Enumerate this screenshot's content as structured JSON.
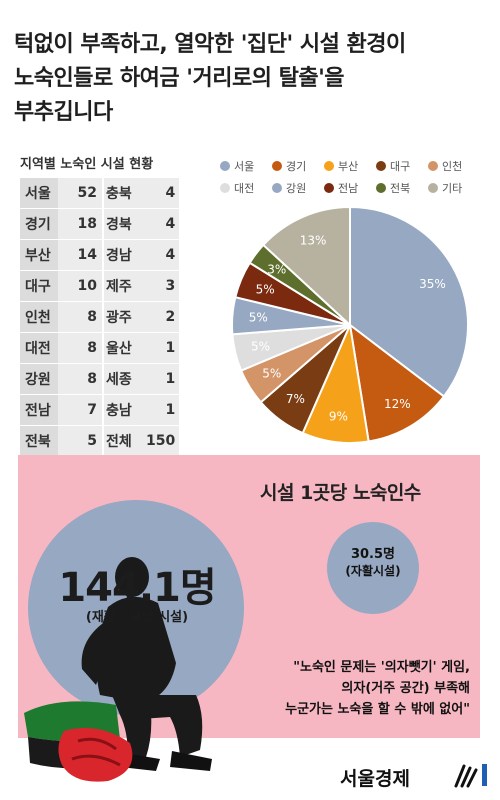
{
  "headline": {
    "line1": "턱없이 부족하고, 열악한 '집단' 시설 환경이",
    "line2": "노숙인들로 하여금 '거리로의 탈출'을",
    "line3": "부추깁니다"
  },
  "table": {
    "title": "지역별 노숙인 시설 현황",
    "rows": [
      {
        "region": "서울",
        "count": "52",
        "region2": "충북",
        "count2": "4"
      },
      {
        "region": "경기",
        "count": "18",
        "region2": "경북",
        "count2": "4"
      },
      {
        "region": "부산",
        "count": "14",
        "region2": "경남",
        "count2": "4"
      },
      {
        "region": "대구",
        "count": "10",
        "region2": "제주",
        "count2": "3"
      },
      {
        "region": "인천",
        "count": "8",
        "region2": "광주",
        "count2": "2"
      },
      {
        "region": "대전",
        "count": "8",
        "region2": "울산",
        "count2": "1"
      },
      {
        "region": "강원",
        "count": "8",
        "region2": "세종",
        "count2": "1"
      },
      {
        "region": "전남",
        "count": "7",
        "region2": "충남",
        "count2": "1"
      },
      {
        "region": "전북",
        "count": "5",
        "region2": "전체",
        "count2": "150"
      }
    ]
  },
  "chart_data": {
    "type": "pie",
    "legend_position": "top",
    "slices": [
      {
        "label": "서울",
        "value": 35,
        "display": "35%",
        "color": "#97a8c2"
      },
      {
        "label": "경기",
        "value": 12,
        "display": "12%",
        "color": "#c55a11"
      },
      {
        "label": "부산",
        "value": 9,
        "display": "9%",
        "color": "#f5a21a"
      },
      {
        "label": "대구",
        "value": 7,
        "display": "7%",
        "color": "#7a3c12"
      },
      {
        "label": "인천",
        "value": 5,
        "display": "5%",
        "color": "#d39468"
      },
      {
        "label": "대전",
        "value": 5,
        "display": "5%",
        "color": "#dedede"
      },
      {
        "label": "강원",
        "value": 5,
        "display": "5%",
        "color": "#97a8c2"
      },
      {
        "label": "전남",
        "value": 5,
        "display": "5%",
        "color": "#7b2a10"
      },
      {
        "label": "전북",
        "value": 3,
        "display": "3%",
        "color": "#5e6e2c"
      },
      {
        "label": "기타",
        "value": 13,
        "display": "13%",
        "color": "#b7b29f"
      }
    ]
  },
  "panel": {
    "title": "시설 1곳당 노숙인수",
    "big_value": "144.1명",
    "big_sub": "(재활 · 요양 시설)",
    "small_value": "30.5명",
    "small_sub": "(자활시설)",
    "quote_lines": [
      "\"노숙인 문제는 '의자뺏기' 게임,",
      "의자(거주 공간) 부족해",
      "누군가는 노숙을 할 수 밖에 없어\""
    ],
    "colors": {
      "background": "#f7b7c2",
      "circle": "#97a8c2"
    }
  },
  "brand": {
    "name": "서울경제"
  }
}
